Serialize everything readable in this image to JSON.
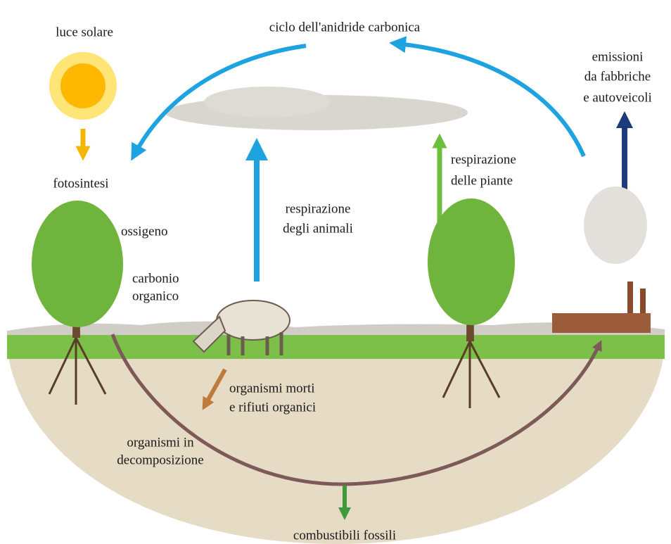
{
  "labels": {
    "sunlight": [
      "luce solare"
    ],
    "cycle": [
      "ciclo dell'anidride carbonica"
    ],
    "emissions": [
      "emissioni",
      "da fabbriche",
      "e autoveicoli"
    ],
    "photosynthesis": [
      "fotosintesi"
    ],
    "oxygen": [
      "ossigeno"
    ],
    "organic_carbon": [
      "carbonio",
      "organico"
    ],
    "animal_respiration": [
      "respirazione",
      "degli animali"
    ],
    "plant_respiration": [
      "respirazione",
      "delle piante"
    ],
    "dead_organisms": [
      "organismi morti",
      "e rifiuti organici"
    ],
    "decomposition": [
      "organismi in",
      "decomposizione"
    ],
    "fossil_fuels": [
      "combustibili fossili"
    ]
  }
}
